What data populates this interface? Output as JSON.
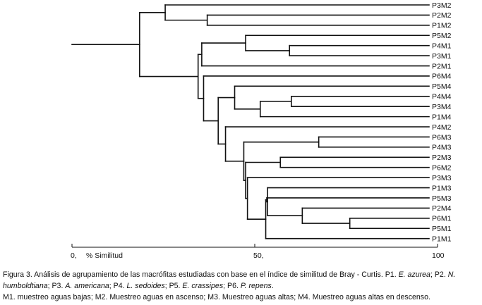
{
  "leaves": [
    "P3M2",
    "P2M2",
    "P1M2",
    "P5M2",
    "P4M1",
    "P3M1",
    "P2M1",
    "P6M4",
    "P5M4",
    "P4M4",
    "P3M4",
    "P1M4",
    "P4M2",
    "P6M3",
    "P4M3",
    "P2M3",
    "P6M2",
    "P3M3",
    "P1M3",
    "P5M3",
    "P2M4",
    "P6M1",
    "P5M1",
    "P1M1"
  ],
  "axis": {
    "ticks": [
      {
        "value": 0,
        "label": "0,"
      },
      {
        "value": 50,
        "label": "50,"
      },
      {
        "value": 100,
        "label": "100"
      }
    ],
    "title": "% Similitud"
  },
  "dendrogram": {
    "root_stub_value": 0,
    "merges": [
      {
        "name": "n_P1P2M2",
        "children": [
          "P2M2",
          "P1M2"
        ],
        "similarity": 37.0
      },
      {
        "name": "n_M2",
        "children": [
          "P3M2",
          "n_P1P2M2"
        ],
        "similarity": 25.5
      },
      {
        "name": "n_P4P3M1",
        "children": [
          "P4M1",
          "P3M1"
        ],
        "similarity": 59.5
      },
      {
        "name": "n_P5M2_M1",
        "children": [
          "P5M2",
          "n_P4P3M1"
        ],
        "similarity": 47.5
      },
      {
        "name": "n_M1",
        "children": [
          "n_P5M2_M1",
          "P2M1"
        ],
        "similarity": 35.5
      },
      {
        "name": "n_P4P3M4",
        "children": [
          "P4M4",
          "P3M4"
        ],
        "similarity": 60.0
      },
      {
        "name": "n_M4a",
        "children": [
          "n_P4P3M4",
          "P1M4"
        ],
        "similarity": 51.5
      },
      {
        "name": "n_M4b",
        "children": [
          "P5M4",
          "n_M4a"
        ],
        "similarity": 44.5
      },
      {
        "name": "n_P6P4M3",
        "children": [
          "P6M3",
          "P4M3"
        ],
        "similarity": 67.5
      },
      {
        "name": "n_P2M3P6M2",
        "children": [
          "P2M3",
          "P6M2"
        ],
        "similarity": 57.0
      },
      {
        "name": "n_P6M1P5M1",
        "children": [
          "P6M1",
          "P5M1"
        ],
        "similarity": 76.0
      },
      {
        "name": "n_P2M4grp",
        "children": [
          "P2M4",
          "n_P6M1P5M1"
        ],
        "similarity": 63.0
      },
      {
        "name": "n_P1M3grp",
        "children": [
          "P1M3",
          "n_P2M4grp"
        ],
        "similarity": 53.5
      },
      {
        "name": "n_P5M3grp",
        "children": [
          "P5M3",
          "n_P1M3grp"
        ],
        "similarity": 53.3
      },
      {
        "name": "n_P1M1grp",
        "children": [
          "n_P5M3grp",
          "P1M1"
        ],
        "similarity": 53.0
      },
      {
        "name": "n_P3M3grp",
        "children": [
          "P3M3",
          "n_P1M1grp"
        ],
        "similarity": 48.0
      },
      {
        "name": "n_mid",
        "children": [
          "n_P2M3P6M2",
          "n_P3M3grp"
        ],
        "similarity": 47.5
      },
      {
        "name": "n_lower",
        "children": [
          "n_P6P4M3",
          "n_mid"
        ],
        "similarity": 47.0
      },
      {
        "name": "n_P4M2grp",
        "children": [
          "P4M2",
          "n_lower"
        ],
        "similarity": 42.0
      },
      {
        "name": "n_bottom",
        "children": [
          "n_M4b",
          "n_P4M2grp"
        ],
        "similarity": 40.0
      },
      {
        "name": "n_P6M4grp",
        "children": [
          "P6M4",
          "n_bottom"
        ],
        "similarity": 36.0
      },
      {
        "name": "n_B",
        "children": [
          "n_M1",
          "n_P6M4grp"
        ],
        "similarity": 34.5
      },
      {
        "name": "n_root",
        "children": [
          "n_M2",
          "n_B"
        ],
        "similarity": 18.5
      }
    ]
  },
  "caption": {
    "line1_text": "Figura 3. Análisis de agrupamiento de las macrófitas estudiadas con base en el índice de similitud de Bray - Curtis. P1. ",
    "sp1": "E. azurea",
    "sep2": "; P2. ",
    "sp2": "N. humboldtiana",
    "sep3": "; P3. ",
    "sp3": "A. americana",
    "sep4": "; P4. ",
    "sp4": "L. sedoides",
    "sep5": "; P5. ",
    "sp5": "E. crassipes",
    "sep6": "; P6. ",
    "sp6": "P. repens",
    "end": ".",
    "line2": "M1. muestreo aguas bajas; M2. Muestreo aguas en ascenso; M3. Muestreo aguas altas; M4. Muestreo aguas altas en descenso."
  }
}
